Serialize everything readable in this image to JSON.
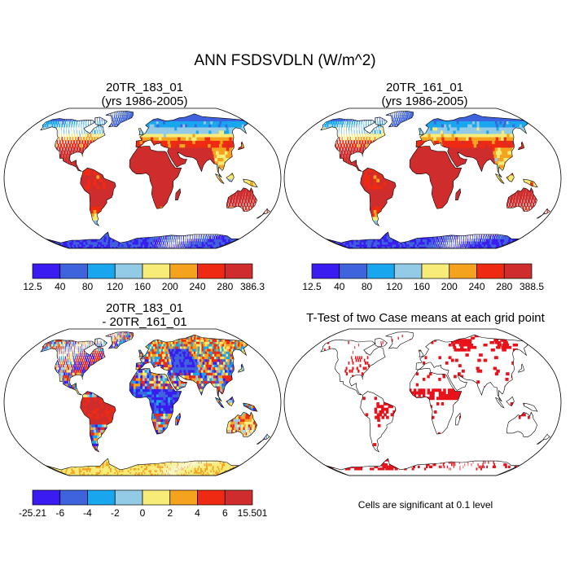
{
  "title": "ANN FSDSVDLN (W/m^2)",
  "panels": [
    {
      "id": "case1",
      "title_line1": "20TR_183_01",
      "title_line2": "(yrs 1986-2005)"
    },
    {
      "id": "case2",
      "title_line1": "20TR_161_01",
      "title_line2": "(yrs 1986-2005)"
    },
    {
      "id": "diff",
      "title_line1": "20TR_183_01",
      "title_line2": "- 20TR_161_01"
    },
    {
      "id": "ttest",
      "title_line1": "T-Test of two Case means at each grid point",
      "title_line2": ""
    }
  ],
  "footnote": "Cells are significant at 0.1 level",
  "colors": {
    "sequential": [
      "#3a1cf0",
      "#3f62dd",
      "#18a7ee",
      "#93cbe6",
      "#f7ec78",
      "#f5a21f",
      "#ee2b12",
      "#cf2d2d"
    ],
    "diverging": [
      "#3a1cf0",
      "#3f62dd",
      "#18a7ee",
      "#93cbe6",
      "#f7ec78",
      "#f5a21f",
      "#ee2b12",
      "#cf2d2d"
    ],
    "significant": "#e8121b",
    "coast": "#000000"
  },
  "chart_data": [
    {
      "type": "heatmap",
      "projection": "robinson",
      "title": "20TR_183_01 (yrs 1986-2005)",
      "colorbar_ticks": [
        "12.5",
        "40",
        "80",
        "120",
        "160",
        "200",
        "240",
        "280",
        "386.3"
      ],
      "range": [
        12.5,
        386.3
      ]
    },
    {
      "type": "heatmap",
      "projection": "robinson",
      "title": "20TR_161_01 (yrs 1986-2005)",
      "colorbar_ticks": [
        "12.5",
        "40",
        "80",
        "120",
        "160",
        "200",
        "240",
        "280",
        "388.5"
      ],
      "range": [
        12.5,
        388.5
      ]
    },
    {
      "type": "heatmap",
      "projection": "robinson",
      "title": "20TR_183_01 - 20TR_161_01",
      "colorbar_ticks": [
        "-25.21",
        "-6",
        "-4",
        "-2",
        "0",
        "2",
        "4",
        "6",
        "15.501"
      ],
      "range": [
        -25.21,
        15.501
      ]
    },
    {
      "type": "heatmap",
      "projection": "robinson",
      "title": "T-Test of two Case means at each grid point",
      "significance_level": 0.1
    }
  ]
}
